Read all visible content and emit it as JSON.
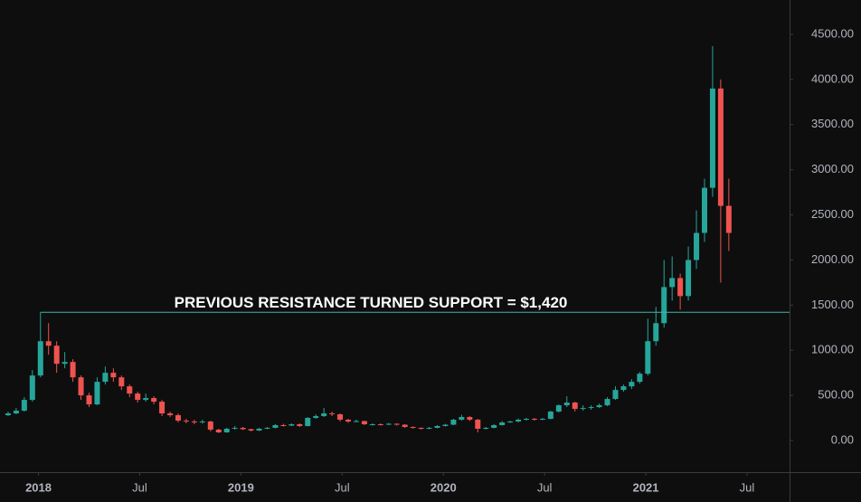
{
  "chart_data": {
    "type": "candlestick",
    "xlim": [
      2017.81,
      2021.71
    ],
    "ylim": [
      -351,
      4881
    ],
    "xticks": [
      2018,
      {
        "value": 2018.5,
        "label": "Jul"
      },
      2019,
      {
        "value": 2019.5,
        "label": "Jul"
      },
      2020,
      {
        "value": 2020.5,
        "label": "Jul"
      },
      2021,
      {
        "value": 2021.5,
        "label": "Jul"
      }
    ],
    "yticks": [
      {
        "value": 0,
        "label": "0.00"
      },
      {
        "value": 500,
        "label": "500.00"
      },
      {
        "value": 1000,
        "label": "1000.00"
      },
      {
        "value": 1500,
        "label": "1500.00"
      },
      {
        "value": 2000,
        "label": "2000.00"
      },
      {
        "value": 2500,
        "label": "2500.00"
      },
      {
        "value": 3000,
        "label": "3000.00"
      },
      {
        "value": 3500,
        "label": "3500.00"
      },
      {
        "value": 4000,
        "label": "4000.00"
      },
      {
        "value": 4500,
        "label": "4500.00"
      }
    ],
    "up_color": "#26a69a",
    "down_color": "#ef5350",
    "annotations": [
      {
        "text": "PREVIOUS RESISTANCE TURNED SUPPORT = $1,420",
        "value": 1420,
        "x": 2018.01,
        "color": "#3fb5a7"
      }
    ],
    "x": [
      2017.85,
      2017.89,
      2017.93,
      2017.97,
      2018.01,
      2018.05,
      2018.09,
      2018.13,
      2018.17,
      2018.21,
      2018.25,
      2018.29,
      2018.33,
      2018.37,
      2018.41,
      2018.45,
      2018.49,
      2018.53,
      2018.57,
      2018.61,
      2018.65,
      2018.69,
      2018.73,
      2018.77,
      2018.81,
      2018.85,
      2018.89,
      2018.93,
      2018.97,
      2019.01,
      2019.05,
      2019.09,
      2019.13,
      2019.17,
      2019.21,
      2019.25,
      2019.29,
      2019.33,
      2019.37,
      2019.41,
      2019.45,
      2019.49,
      2019.53,
      2019.57,
      2019.61,
      2019.65,
      2019.69,
      2019.73,
      2019.77,
      2019.81,
      2019.85,
      2019.89,
      2019.93,
      2019.97,
      2020.01,
      2020.05,
      2020.09,
      2020.13,
      2020.17,
      2020.21,
      2020.25,
      2020.29,
      2020.33,
      2020.37,
      2020.41,
      2020.45,
      2020.49,
      2020.53,
      2020.57,
      2020.61,
      2020.65,
      2020.69,
      2020.73,
      2020.77,
      2020.81,
      2020.85,
      2020.89,
      2020.93,
      2020.97,
      2021.01,
      2021.05,
      2021.09,
      2021.13,
      2021.17,
      2021.21,
      2021.25,
      2021.29,
      2021.33,
      2021.37,
      2021.41
    ],
    "open": [
      280,
      300,
      330,
      450,
      720,
      1100,
      1050,
      850,
      870,
      700,
      500,
      400,
      650,
      750,
      700,
      600,
      520,
      450,
      470,
      430,
      300,
      280,
      220,
      210,
      200,
      210,
      120,
      90,
      130,
      140,
      125,
      110,
      130,
      140,
      170,
      165,
      180,
      160,
      250,
      270,
      300,
      290,
      230,
      210,
      215,
      180,
      180,
      175,
      185,
      175,
      150,
      140,
      130,
      140,
      160,
      175,
      230,
      260,
      230,
      130,
      140,
      170,
      200,
      210,
      230,
      240,
      230,
      240,
      320,
      390,
      420,
      350,
      360,
      370,
      390,
      460,
      560,
      600,
      650,
      740,
      1100,
      1300,
      1700,
      1800,
      1600,
      2000,
      2300,
      2800,
      3900,
      2600
    ],
    "high": [
      320,
      360,
      480,
      780,
      1420,
      1300,
      1100,
      980,
      900,
      720,
      530,
      700,
      820,
      800,
      720,
      620,
      540,
      520,
      490,
      450,
      320,
      300,
      240,
      230,
      230,
      220,
      130,
      140,
      160,
      150,
      130,
      140,
      150,
      180,
      185,
      190,
      190,
      260,
      290,
      360,
      320,
      300,
      240,
      230,
      220,
      190,
      190,
      195,
      190,
      180,
      155,
      145,
      150,
      170,
      185,
      240,
      285,
      270,
      240,
      150,
      180,
      215,
      220,
      245,
      250,
      250,
      250,
      330,
      400,
      490,
      430,
      390,
      390,
      410,
      480,
      600,
      620,
      680,
      760,
      1350,
      1480,
      2000,
      2040,
      1850,
      2150,
      2550,
      2900,
      4370,
      4000,
      2900
    ],
    "low": [
      270,
      290,
      320,
      430,
      700,
      950,
      750,
      800,
      650,
      450,
      370,
      390,
      620,
      650,
      560,
      480,
      420,
      430,
      400,
      270,
      260,
      200,
      190,
      180,
      185,
      100,
      82,
      85,
      120,
      115,
      100,
      105,
      125,
      135,
      155,
      160,
      150,
      155,
      240,
      260,
      270,
      210,
      195,
      200,
      170,
      165,
      165,
      170,
      165,
      140,
      130,
      120,
      125,
      135,
      155,
      170,
      220,
      215,
      90,
      120,
      135,
      165,
      195,
      200,
      220,
      220,
      225,
      235,
      310,
      370,
      320,
      330,
      340,
      360,
      380,
      450,
      540,
      570,
      630,
      720,
      1050,
      1250,
      1550,
      1450,
      1550,
      1900,
      2200,
      2700,
      1750,
      2100
    ],
    "close": [
      300,
      330,
      450,
      720,
      1100,
      1050,
      850,
      870,
      700,
      500,
      400,
      650,
      750,
      700,
      600,
      520,
      450,
      470,
      430,
      300,
      280,
      220,
      210,
      200,
      210,
      120,
      90,
      130,
      140,
      125,
      110,
      130,
      140,
      170,
      165,
      180,
      160,
      250,
      270,
      300,
      290,
      230,
      210,
      215,
      180,
      180,
      175,
      185,
      175,
      150,
      140,
      130,
      140,
      160,
      175,
      230,
      260,
      230,
      130,
      140,
      170,
      200,
      210,
      230,
      240,
      230,
      240,
      320,
      390,
      420,
      350,
      360,
      370,
      390,
      460,
      560,
      600,
      650,
      740,
      1100,
      1300,
      1700,
      1800,
      1600,
      2000,
      2300,
      2800,
      3900,
      2600,
      2300
    ]
  }
}
